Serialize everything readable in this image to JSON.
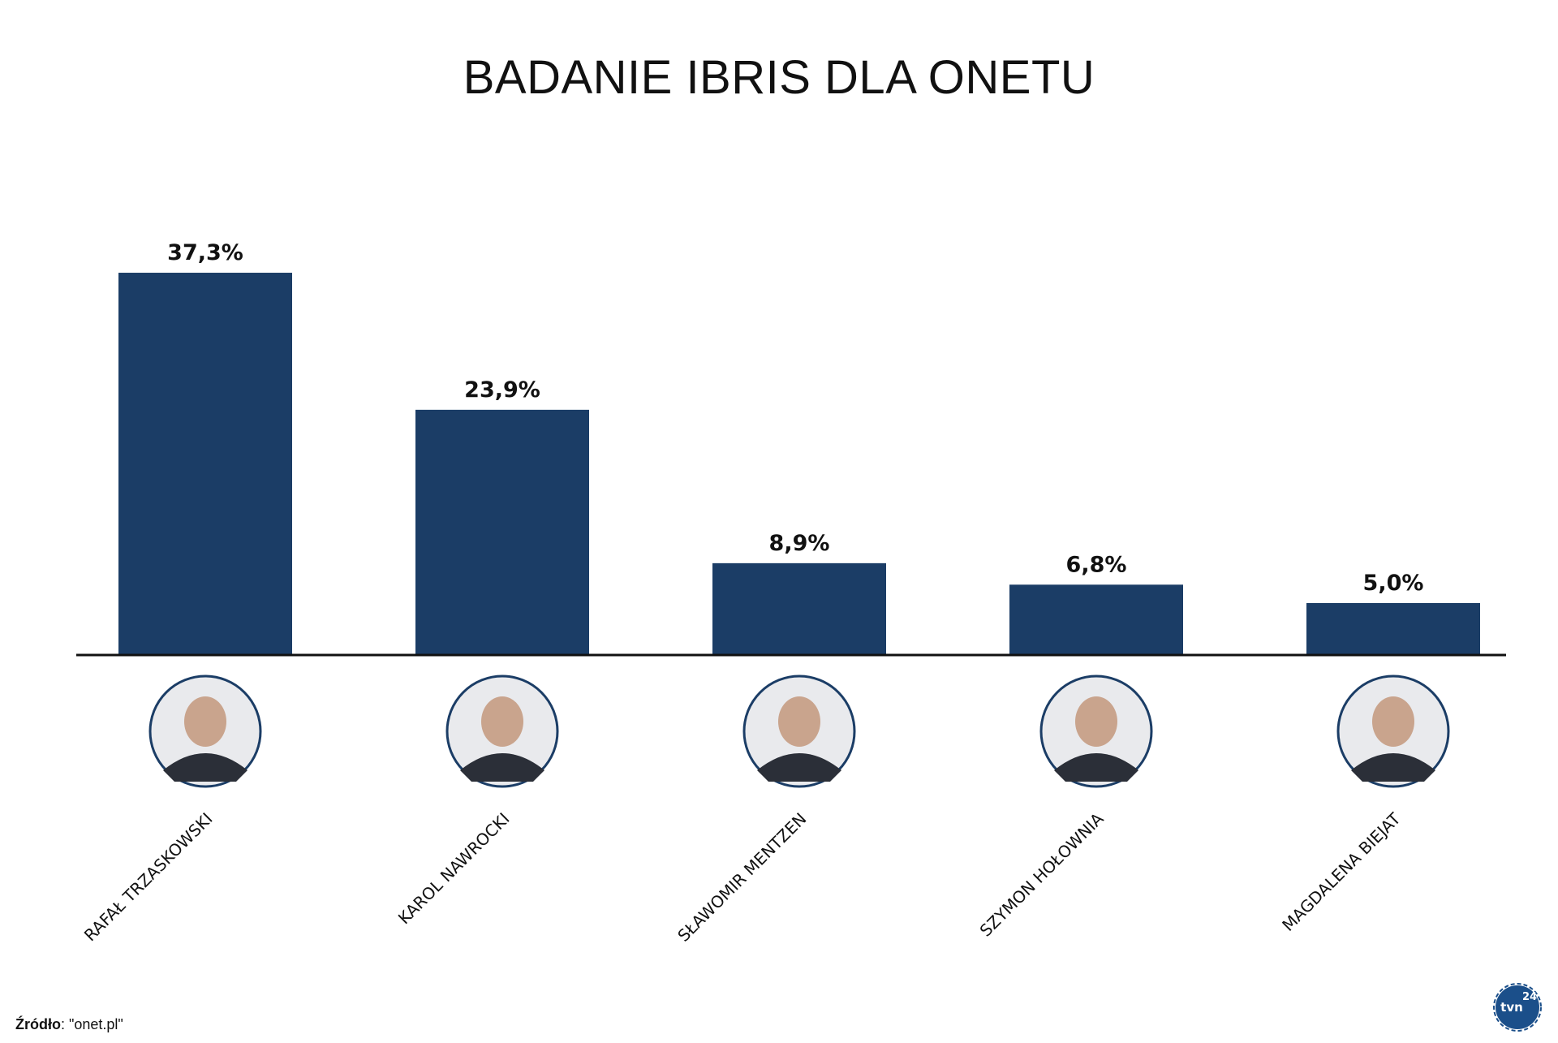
{
  "chart_data": {
    "type": "bar",
    "title": "BADANIE IBRIS DLA ONETU",
    "categories": [
      "RAFAŁ TRZASKOWSKI",
      "KAROL NAWROCKI",
      "SŁAWOMIR MENTZEN",
      "SZYMON HOŁOWNIA",
      "MAGDALENA BIEJAT"
    ],
    "values": [
      37.3,
      23.9,
      8.9,
      6.8,
      5.0
    ],
    "value_labels": [
      "37,3%",
      "23,9%",
      "8,9%",
      "6,8%",
      "5,0%"
    ],
    "ylim": [
      0,
      40
    ],
    "grid": false,
    "bar_color": "#1b3d66"
  },
  "source": {
    "label": "Źródło",
    "value": ": \"onet.pl\""
  },
  "logo": {
    "text": "tvn",
    "number": "24",
    "icon": "tvn24-logo-icon"
  }
}
